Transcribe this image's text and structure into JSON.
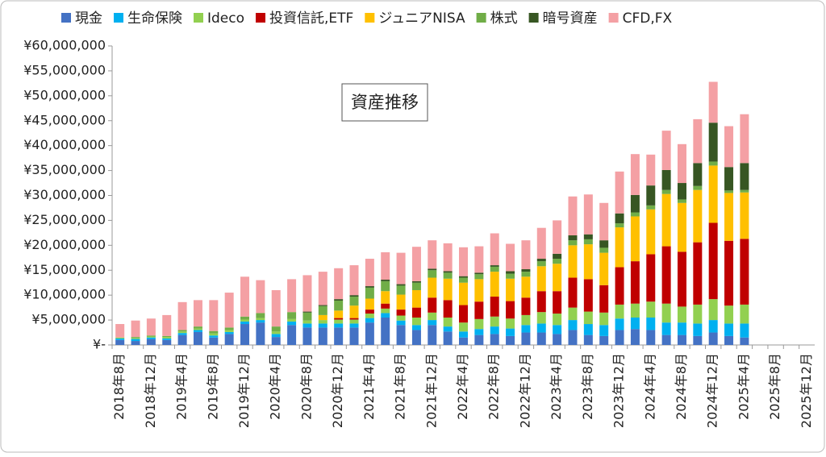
{
  "chart_data": {
    "type": "stacked-bar",
    "title": "資産推移",
    "categories": [
      "2018年8月",
      null,
      "2018年12月",
      null,
      "2019年4月",
      null,
      "2019年8月",
      null,
      "2019年12月",
      null,
      "2020年4月",
      null,
      "2020年8月",
      null,
      "2020年12月",
      null,
      "2021年4月",
      null,
      "2021年8月",
      null,
      "2021年12月",
      null,
      "2022年4月",
      null,
      "2022年8月",
      null,
      "2022年12月",
      null,
      "2023年4月",
      null,
      "2023年8月",
      null,
      "2023年12月",
      null,
      "2024年4月",
      null,
      "2024年8月",
      null,
      "2024年12月",
      null,
      "2025年4月",
      null,
      "2025年8月",
      null,
      "2025年12月"
    ],
    "series": [
      {
        "name": "現金",
        "color": "#4472c4",
        "values": [
          1000000,
          800000,
          1200000,
          1000000,
          2000000,
          2600000,
          1500000,
          2200000,
          4200000,
          4500000,
          1600000,
          4000000,
          3500000,
          3500000,
          3500000,
          3500000,
          4500000,
          5500000,
          4000000,
          3000000,
          4000000,
          2700000,
          1500000,
          2000000,
          2200000,
          1800000,
          2500000,
          2500000,
          2200000,
          3000000,
          2000000,
          1800000,
          3000000,
          3200000,
          3000000,
          2000000,
          2000000,
          1800000,
          2500000,
          1800000,
          1500000,
          null,
          null,
          null,
          null
        ]
      },
      {
        "name": "生命保険",
        "color": "#00b0f0",
        "values": [
          300000,
          400000,
          300000,
          300000,
          400000,
          400000,
          400000,
          400000,
          500000,
          500000,
          600000,
          700000,
          800000,
          800000,
          800000,
          800000,
          900000,
          900000,
          900000,
          1000000,
          1000000,
          1000000,
          1200000,
          1200000,
          1500000,
          1500000,
          1500000,
          1800000,
          1800000,
          2000000,
          2200000,
          2200000,
          2300000,
          2300000,
          2500000,
          2500000,
          2500000,
          2500000,
          2500000,
          2500000,
          2800000,
          null,
          null,
          null,
          null
        ]
      },
      {
        "name": "Ideco",
        "color": "#92d050",
        "values": [
          200000,
          200000,
          200000,
          300000,
          300000,
          300000,
          400000,
          400000,
          400000,
          400000,
          500000,
          500000,
          600000,
          700000,
          800000,
          800000,
          900000,
          900000,
          1000000,
          1500000,
          1500000,
          1800000,
          1800000,
          2000000,
          2000000,
          2000000,
          2000000,
          2300000,
          2300000,
          2500000,
          2500000,
          2500000,
          2800000,
          2800000,
          3200000,
          3800000,
          3200000,
          3800000,
          4200000,
          3600000,
          3800000,
          null,
          null,
          null,
          null
        ]
      },
      {
        "name": "投資信託,ETF",
        "color": "#c00000",
        "values": [
          0,
          0,
          0,
          0,
          0,
          0,
          0,
          0,
          0,
          0,
          0,
          0,
          0,
          0,
          300000,
          300000,
          800000,
          1000000,
          1200000,
          2000000,
          3000000,
          3500000,
          3500000,
          3500000,
          4000000,
          3500000,
          3500000,
          4200000,
          4500000,
          6000000,
          6500000,
          5500000,
          7500000,
          8500000,
          9500000,
          11500000,
          11000000,
          12500000,
          15300000,
          13000000,
          13200000,
          null,
          null,
          null,
          null
        ]
      },
      {
        "name": "ジュニアNISA",
        "color": "#ffc000",
        "values": [
          0,
          0,
          0,
          0,
          0,
          0,
          0,
          0,
          0,
          0,
          0,
          0,
          0,
          1000000,
          1500000,
          2500000,
          2200000,
          2500000,
          3000000,
          3500000,
          4000000,
          4300000,
          4500000,
          4500000,
          5000000,
          4500000,
          4200000,
          5000000,
          5500000,
          6500000,
          7000000,
          6500000,
          8000000,
          9000000,
          9000000,
          10500000,
          9800000,
          10500000,
          11500000,
          9600000,
          9300000,
          null,
          null,
          null,
          null
        ]
      },
      {
        "name": "株式",
        "color": "#70ad47",
        "values": [
          0,
          200000,
          200000,
          200000,
          300000,
          400000,
          500000,
          500000,
          600000,
          1000000,
          1000000,
          1400000,
          1600000,
          1800000,
          2000000,
          1800000,
          2200000,
          2000000,
          1800000,
          1500000,
          1500000,
          1200000,
          1000000,
          1000000,
          1000000,
          1000000,
          1000000,
          1000000,
          1000000,
          1000000,
          1000000,
          1000000,
          800000,
          800000,
          800000,
          800000,
          700000,
          800000,
          800000,
          500000,
          500000,
          null,
          null,
          null,
          null
        ]
      },
      {
        "name": "暗号資産",
        "color": "#375623",
        "values": [
          0,
          0,
          0,
          0,
          0,
          0,
          0,
          0,
          0,
          0,
          0,
          0,
          200000,
          200000,
          300000,
          300000,
          300000,
          300000,
          300000,
          300000,
          300000,
          300000,
          300000,
          300000,
          300000,
          500000,
          500000,
          500000,
          1000000,
          1000000,
          1000000,
          1500000,
          2000000,
          3500000,
          4000000,
          4000000,
          3300000,
          4600000,
          7800000,
          4700000,
          5400000,
          null,
          null,
          null,
          null
        ]
      },
      {
        "name": "CFD,FX",
        "color": "#f4a0a4",
        "values": [
          2700000,
          3300000,
          3400000,
          4200000,
          5600000,
          5300000,
          6200000,
          7000000,
          8000000,
          6600000,
          7300000,
          6600000,
          7300000,
          6700000,
          6200000,
          6000000,
          5500000,
          5500000,
          6300000,
          6900000,
          5700000,
          5600000,
          5800000,
          5300000,
          6400000,
          5500000,
          5800000,
          6200000,
          6700000,
          7800000,
          8000000,
          7500000,
          8400000,
          8200000,
          6200000,
          7900000,
          7800000,
          8800000,
          8200000,
          8200000,
          9800000,
          null,
          null,
          null,
          null
        ]
      }
    ],
    "ylim": [
      0,
      60000000
    ],
    "yticks": [
      {
        "value": 0,
        "label": "¥-"
      },
      {
        "value": 5000000,
        "label": "¥5,000,000"
      },
      {
        "value": 10000000,
        "label": "¥10,000,000"
      },
      {
        "value": 15000000,
        "label": "¥15,000,000"
      },
      {
        "value": 20000000,
        "label": "¥20,000,000"
      },
      {
        "value": 25000000,
        "label": "¥25,000,000"
      },
      {
        "value": 30000000,
        "label": "¥30,000,000"
      },
      {
        "value": 35000000,
        "label": "¥35,000,000"
      },
      {
        "value": 40000000,
        "label": "¥40,000,000"
      },
      {
        "value": 45000000,
        "label": "¥45,000,000"
      },
      {
        "value": 50000000,
        "label": "¥50,000,000"
      },
      {
        "value": 55000000,
        "label": "¥55,000,000"
      },
      {
        "value": 60000000,
        "label": "¥60,000,000"
      }
    ],
    "grid": false
  }
}
